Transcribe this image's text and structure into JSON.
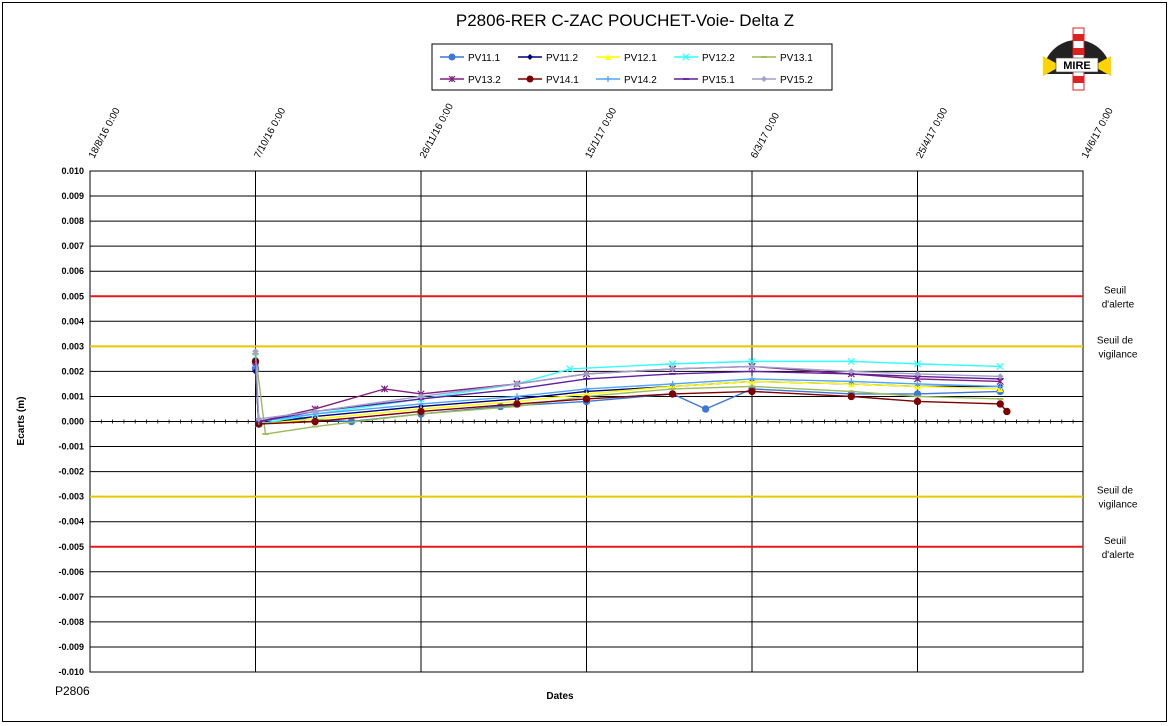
{
  "footer_code": "P2806",
  "logo": {
    "text": "MIRE",
    "icon": "mire-logo-icon"
  },
  "colors": {
    "alert": "#e41a1c",
    "vigilance": "#e6c800"
  },
  "chart_data": {
    "type": "scatter",
    "title": "P2806-RER  C-ZAC  POUCHET-Voie-  Delta Z",
    "xlabel": "Dates",
    "ylabel": "Ecarts (m)",
    "x_ticks": [
      "18/8/16 0:00",
      "7/10/16 0:00",
      "26/11/16 0:00",
      "15/1/17 0:00",
      "6/3/17 0:00",
      "25/4/17 0:00",
      "14/6/17 0:00"
    ],
    "x_range": [
      "2016-08-18",
      "2017-06-14"
    ],
    "y_ticks": [
      "0.010",
      "0.009",
      "0.008",
      "0.007",
      "0.006",
      "0.005",
      "0.004",
      "0.003",
      "0.002",
      "0.001",
      "0.000",
      "-0.001",
      "-0.002",
      "-0.003",
      "-0.004",
      "-0.005",
      "-0.006",
      "-0.007",
      "-0.008",
      "-0.009",
      "-0.010"
    ],
    "ylim": [
      -0.01,
      0.01
    ],
    "grid": true,
    "legend_position": "top-center",
    "thresholds": [
      {
        "label_line1": "Seuil",
        "label_line2": "d'alerte",
        "value": 0.005,
        "color": "#e41a1c"
      },
      {
        "label_line1": "Seuil de",
        "label_line2": "vigilance",
        "value": 0.003,
        "color": "#e6c800"
      },
      {
        "label_line1": "Seuil de",
        "label_line2": "vigilance",
        "value": -0.003,
        "color": "#e6c800"
      },
      {
        "label_line1": "Seuil",
        "label_line2": "d'alerte",
        "value": -0.005,
        "color": "#e41a1c"
      }
    ],
    "series": [
      {
        "name": "PV11.1",
        "color": "#3c78d8",
        "marker": "circle",
        "points": [
          [
            "2016-10-07",
            0.0021
          ],
          [
            "2016-10-08",
            -0.0001
          ],
          [
            "2016-10-20",
            0.0001
          ],
          [
            "2016-11-05",
            0.0
          ],
          [
            "2016-11-26",
            0.0003
          ],
          [
            "2016-12-20",
            0.0006
          ],
          [
            "2017-01-15",
            0.0008
          ],
          [
            "2017-02-10",
            0.0011
          ],
          [
            "2017-02-20",
            0.0005
          ],
          [
            "2017-03-06",
            0.0013
          ],
          [
            "2017-04-05",
            0.0011
          ],
          [
            "2017-04-25",
            0.0011
          ],
          [
            "2017-05-20",
            0.0012
          ]
        ]
      },
      {
        "name": "PV11.2",
        "color": "#00007f",
        "marker": "diamond",
        "points": [
          [
            "2016-10-07",
            0.002
          ],
          [
            "2016-10-08",
            -0.0001
          ],
          [
            "2016-10-25",
            0.0002
          ],
          [
            "2016-11-26",
            0.0006
          ],
          [
            "2016-12-25",
            0.0009
          ],
          [
            "2017-01-15",
            0.0012
          ],
          [
            "2017-02-10",
            0.0014
          ],
          [
            "2017-03-06",
            0.0016
          ],
          [
            "2017-04-05",
            0.0015
          ],
          [
            "2017-04-25",
            0.0014
          ],
          [
            "2017-05-20",
            0.0014
          ]
        ]
      },
      {
        "name": "PV12.1",
        "color": "#ffff00",
        "marker": "triangle",
        "points": [
          [
            "2016-10-07",
            0.0024
          ],
          [
            "2016-10-08",
            -0.0001
          ],
          [
            "2016-10-25",
            0.0001
          ],
          [
            "2016-11-26",
            0.0005
          ],
          [
            "2016-12-25",
            0.0008
          ],
          [
            "2017-01-15",
            0.0011
          ],
          [
            "2017-02-10",
            0.0014
          ],
          [
            "2017-03-06",
            0.0016
          ],
          [
            "2017-04-05",
            0.0015
          ],
          [
            "2017-04-25",
            0.0014
          ],
          [
            "2017-05-20",
            0.0013
          ]
        ]
      },
      {
        "name": "PV12.2",
        "color": "#33ffff",
        "marker": "x",
        "points": [
          [
            "2016-10-07",
            0.0026
          ],
          [
            "2016-10-08",
            -0.0001
          ],
          [
            "2016-10-25",
            0.0003
          ],
          [
            "2016-11-26",
            0.0009
          ],
          [
            "2016-12-25",
            0.0015
          ],
          [
            "2017-01-10",
            0.0021
          ],
          [
            "2017-02-10",
            0.0023
          ],
          [
            "2017-03-06",
            0.0024
          ],
          [
            "2017-04-05",
            0.0024
          ],
          [
            "2017-04-25",
            0.0023
          ],
          [
            "2017-05-20",
            0.0022
          ]
        ]
      },
      {
        "name": "PV13.1",
        "color": "#9bbb59",
        "marker": "dash",
        "points": [
          [
            "2016-10-07",
            0.0027
          ],
          [
            "2016-10-10",
            -0.0005
          ],
          [
            "2016-10-25",
            -0.0002
          ],
          [
            "2016-11-26",
            0.0003
          ],
          [
            "2016-12-25",
            0.0006
          ],
          [
            "2017-01-15",
            0.001
          ],
          [
            "2017-02-10",
            0.0013
          ],
          [
            "2017-03-06",
            0.0014
          ],
          [
            "2017-04-05",
            0.0012
          ],
          [
            "2017-04-25",
            0.001
          ],
          [
            "2017-05-20",
            0.0009
          ]
        ]
      },
      {
        "name": "PV13.2",
        "color": "#7f1f7f",
        "marker": "star",
        "points": [
          [
            "2016-10-07",
            0.0023
          ],
          [
            "2016-10-08",
            0.0
          ],
          [
            "2016-10-25",
            0.0005
          ],
          [
            "2016-11-15",
            0.0013
          ],
          [
            "2016-11-26",
            0.0011
          ],
          [
            "2016-12-25",
            0.0015
          ],
          [
            "2017-01-15",
            0.0019
          ],
          [
            "2017-02-10",
            0.0021
          ],
          [
            "2017-03-06",
            0.0022
          ],
          [
            "2017-04-05",
            0.0019
          ],
          [
            "2017-04-25",
            0.0017
          ],
          [
            "2017-05-20",
            0.0016
          ]
        ]
      },
      {
        "name": "PV14.1",
        "color": "#7f0000",
        "marker": "circle",
        "points": [
          [
            "2016-10-07",
            0.0024
          ],
          [
            "2016-10-08",
            -0.0001
          ],
          [
            "2016-10-25",
            0.0
          ],
          [
            "2016-11-26",
            0.0004
          ],
          [
            "2016-12-25",
            0.0007
          ],
          [
            "2017-01-15",
            0.0009
          ],
          [
            "2017-02-10",
            0.0011
          ],
          [
            "2017-03-06",
            0.0012
          ],
          [
            "2017-04-05",
            0.001
          ],
          [
            "2017-04-25",
            0.0008
          ],
          [
            "2017-05-20",
            0.0007
          ],
          [
            "2017-05-22",
            0.0004
          ]
        ]
      },
      {
        "name": "PV14.2",
        "color": "#4da6ff",
        "marker": "plus",
        "points": [
          [
            "2016-10-07",
            0.0022
          ],
          [
            "2016-10-08",
            0.0
          ],
          [
            "2016-10-25",
            0.0003
          ],
          [
            "2016-11-26",
            0.0007
          ],
          [
            "2016-12-25",
            0.001
          ],
          [
            "2017-01-15",
            0.0013
          ],
          [
            "2017-02-10",
            0.0015
          ],
          [
            "2017-03-06",
            0.0017
          ],
          [
            "2017-04-05",
            0.0016
          ],
          [
            "2017-04-25",
            0.0015
          ],
          [
            "2017-05-20",
            0.0014
          ]
        ]
      },
      {
        "name": "PV15.1",
        "color": "#5f1f9f",
        "marker": "dash",
        "points": [
          [
            "2016-10-07",
            0.0023
          ],
          [
            "2016-10-08",
            0.0
          ],
          [
            "2016-10-25",
            0.0004
          ],
          [
            "2016-11-26",
            0.0009
          ],
          [
            "2016-12-25",
            0.0013
          ],
          [
            "2017-01-15",
            0.0017
          ],
          [
            "2017-02-10",
            0.0019
          ],
          [
            "2017-03-06",
            0.002
          ],
          [
            "2017-04-05",
            0.0019
          ],
          [
            "2017-04-25",
            0.0018
          ],
          [
            "2017-05-20",
            0.0017
          ]
        ]
      },
      {
        "name": "PV15.2",
        "color": "#a0a0c8",
        "marker": "diamond",
        "points": [
          [
            "2016-10-07",
            0.0028
          ],
          [
            "2016-10-08",
            0.0001
          ],
          [
            "2016-10-25",
            0.0004
          ],
          [
            "2016-11-26",
            0.001
          ],
          [
            "2016-12-25",
            0.0015
          ],
          [
            "2017-01-15",
            0.0019
          ],
          [
            "2017-02-10",
            0.0021
          ],
          [
            "2017-03-06",
            0.0022
          ],
          [
            "2017-04-05",
            0.002
          ],
          [
            "2017-04-25",
            0.0019
          ],
          [
            "2017-05-20",
            0.0018
          ]
        ]
      }
    ]
  }
}
